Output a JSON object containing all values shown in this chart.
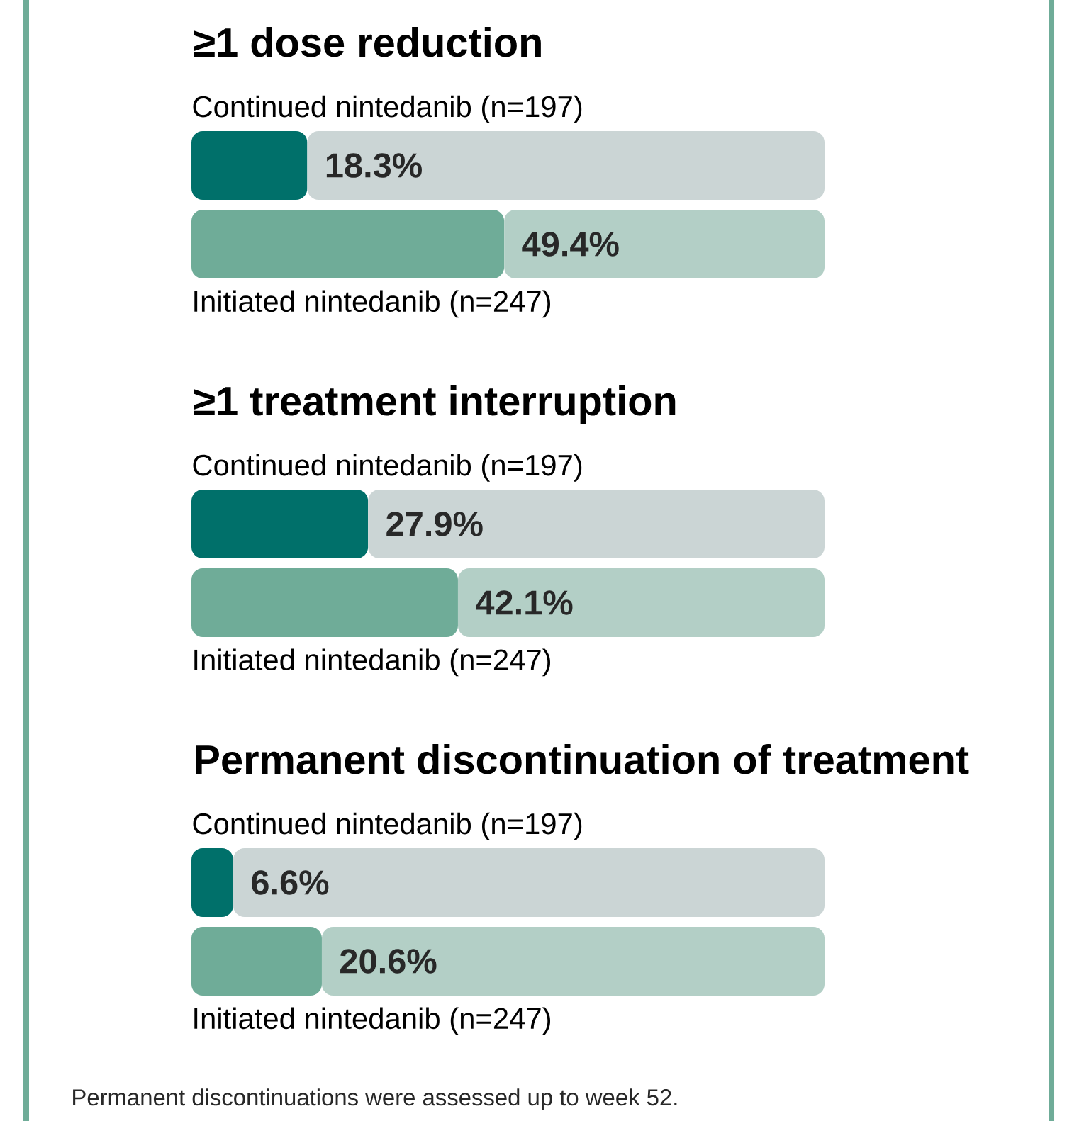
{
  "chart_data": [
    {
      "type": "bar",
      "orientation": "horizontal",
      "stacked": true,
      "title": "≥1 dose reduction",
      "categories": [
        "Continued nintedanib (n=197)",
        "Initiated nintedanib (n=247)"
      ],
      "xlim": [
        0,
        100
      ],
      "tick_labels": false,
      "series": [
        {
          "values": [
            18.3,
            49.4
          ],
          "colors": [
            "#00706a",
            "#6fac98"
          ],
          "value_labels": [
            "18.3%",
            "49.4%"
          ]
        },
        {
          "values": [
            81.7,
            50.6
          ],
          "colors": [
            "#cbd5d5",
            "#b3cfc6"
          ]
        }
      ]
    },
    {
      "type": "bar",
      "orientation": "horizontal",
      "stacked": true,
      "title": "≥1 treatment interruption",
      "categories": [
        "Continued nintedanib (n=197)",
        "Initiated nintedanib (n=247)"
      ],
      "xlim": [
        0,
        100
      ],
      "tick_labels": false,
      "series": [
        {
          "values": [
            27.9,
            42.1
          ],
          "colors": [
            "#00706a",
            "#6fac98"
          ],
          "value_labels": [
            "27.9%",
            "42.1%"
          ]
        },
        {
          "values": [
            72.1,
            57.9
          ],
          "colors": [
            "#cbd5d5",
            "#b3cfc6"
          ]
        }
      ]
    },
    {
      "type": "bar",
      "orientation": "horizontal",
      "stacked": true,
      "title": "Permanent discontinuation of treatment",
      "categories": [
        "Continued nintedanib (n=197)",
        "Initiated nintedanib (n=247)"
      ],
      "xlim": [
        0,
        100
      ],
      "tick_labels": false,
      "annotations": [
        "Permanent discontinuations were assessed up to week 52."
      ],
      "series": [
        {
          "values": [
            6.6,
            20.6
          ],
          "colors": [
            "#00706a",
            "#6fac98"
          ],
          "value_labels": [
            "6.6%",
            "20.6%"
          ]
        },
        {
          "values": [
            93.4,
            79.4
          ],
          "colors": [
            "#cbd5d5",
            "#b3cfc6"
          ]
        }
      ]
    }
  ]
}
